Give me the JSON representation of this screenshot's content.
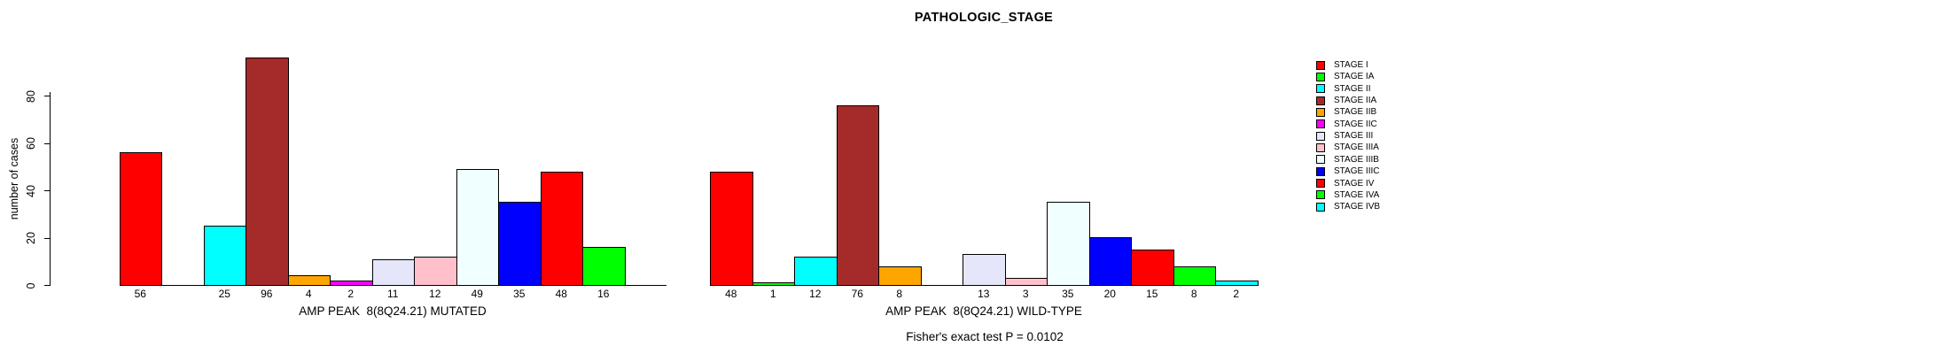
{
  "title": "PATHOLOGIC_STAGE",
  "chart_data": {
    "type": "bar",
    "title": "PATHOLOGIC_STAGE",
    "ylabel": "number of cases",
    "ylim": [
      0,
      96
    ],
    "yticks": [
      0,
      20,
      40,
      60,
      80
    ],
    "grid": false,
    "legend_position": "right-outside",
    "categories": [
      "STAGE I",
      "STAGE IA",
      "STAGE II",
      "STAGE IIA",
      "STAGE IIB",
      "STAGE IIC",
      "STAGE III",
      "STAGE IIIA",
      "STAGE IIIB",
      "STAGE IIIC",
      "STAGE IV",
      "STAGE IVA",
      "STAGE IVB"
    ],
    "colors": [
      "#FF0000",
      "#00FF00",
      "#00FFFF",
      "#A52A2A",
      "#FFA500",
      "#FF00FF",
      "#E6E6FA",
      "#FFC0CB",
      "#F0FFFF",
      "#0000FF",
      "#FF0000",
      "#00FF00",
      "#00FFFF"
    ],
    "series": [
      {
        "name": "AMP PEAK  8(8Q24.21) MUTATED",
        "values": [
          56,
          0,
          25,
          96,
          4,
          2,
          11,
          12,
          49,
          35,
          48,
          16,
          0
        ]
      },
      {
        "name": "AMP PEAK  8(8Q24.21) WILD-TYPE",
        "values": [
          48,
          1,
          12,
          76,
          8,
          0,
          13,
          3,
          35,
          20,
          15,
          8,
          2
        ]
      }
    ],
    "bar_value_labels_shown_for_zero": false,
    "annotation": "Fisher's exact test P = 0.0102"
  }
}
